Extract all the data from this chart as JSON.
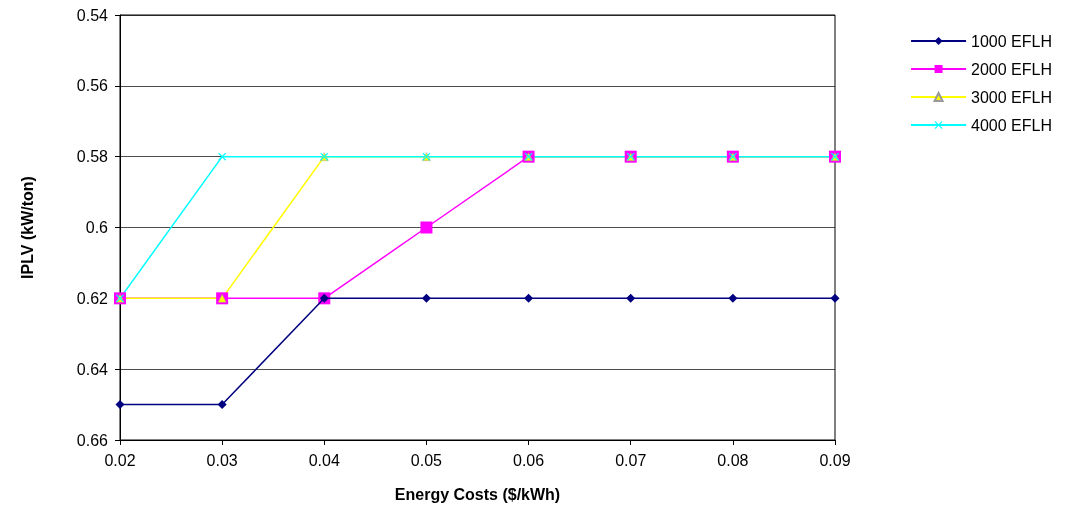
{
  "chart_data": {
    "type": "line",
    "xlabel": "Energy Costs ($/kWh)",
    "ylabel": "IPLV (kW/ton)",
    "x": [
      0.02,
      0.03,
      0.04,
      0.05,
      0.06,
      0.07,
      0.08,
      0.09
    ],
    "xlim": [
      0.02,
      0.09
    ],
    "xticks": [
      0.02,
      0.03,
      0.04,
      0.05,
      0.06,
      0.07,
      0.08,
      0.09
    ],
    "ylim": [
      0.66,
      0.54
    ],
    "yticks": [
      0.54,
      0.56,
      0.58,
      0.6,
      0.62,
      0.64,
      0.66
    ],
    "grid": "y",
    "legend": "right",
    "line_style": "solid",
    "series": [
      {
        "name": "1000 EFLH",
        "color": "#000080",
        "marker": "diamond",
        "values": [
          0.65,
          0.65,
          0.62,
          0.62,
          0.62,
          0.62,
          0.62,
          0.62
        ]
      },
      {
        "name": "2000 EFLH",
        "color": "#ff00ff",
        "marker": "square",
        "values": [
          0.62,
          0.62,
          0.62,
          0.6,
          0.58,
          0.58,
          0.58,
          0.58
        ]
      },
      {
        "name": "3000 EFLH",
        "color": "#ffff00",
        "marker": "triangle",
        "values": [
          0.62,
          0.62,
          0.58,
          0.58,
          0.58,
          0.58,
          0.58,
          0.58
        ]
      },
      {
        "name": "4000 EFLH",
        "color": "#00ffff",
        "marker": "cross",
        "values": [
          0.62,
          0.58,
          0.58,
          0.58,
          0.58,
          0.58,
          0.58,
          0.58
        ]
      }
    ]
  }
}
